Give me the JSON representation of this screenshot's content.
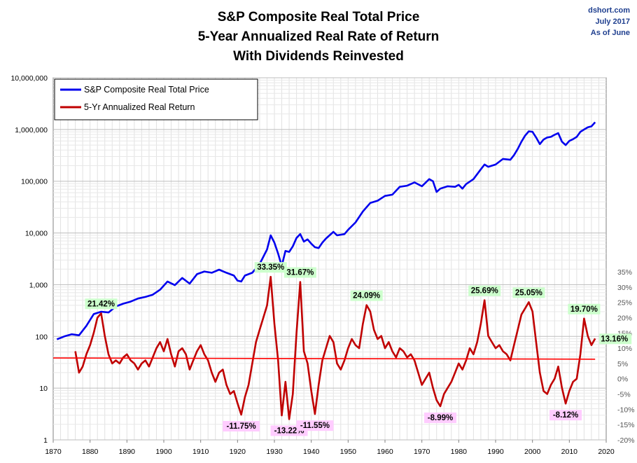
{
  "title_lines": [
    "S&P Composite Real Total Price",
    "5-Year Annualized Real Rate of Return",
    "With Dividends Reinvested"
  ],
  "meta": {
    "source": "dshort.com",
    "date": "July 2017",
    "as_of": "As of June"
  },
  "legend": {
    "price_label": "S&P Composite Real Total Price",
    "return_label": "5-Yr Annualized Real Return"
  },
  "colors": {
    "price": "#0000ee",
    "return": "#c00000",
    "trend": "#ff0000",
    "positive_label_bg": "#ccffcc",
    "negative_label_bg": "#ffccff"
  },
  "chart_data": {
    "type": "line",
    "title": "S&P Composite Real Total Price / 5-Year Annualized Real Rate of Return / With Dividends Reinvested",
    "x_axis": {
      "min": 1870,
      "max": 2020,
      "ticks": [
        "1870",
        "1880",
        "1890",
        "1900",
        "1910",
        "1920",
        "1930",
        "1940",
        "1950",
        "1960",
        "1970",
        "1980",
        "1990",
        "2000",
        "2010",
        "2020"
      ]
    },
    "y_left": {
      "scale": "log",
      "min": 1,
      "max": 10000000,
      "ticks": [
        "1",
        "10",
        "100",
        "1,000",
        "10,000",
        "100,000",
        "1,000,000",
        "10,000,000"
      ]
    },
    "y_right": {
      "min": -20,
      "max": 35,
      "unit": "%",
      "ticks": [
        "-20%",
        "-15%",
        "-10%",
        "-5%",
        "0%",
        "5%",
        "10%",
        "15%",
        "20%",
        "25%",
        "30%",
        "35%"
      ]
    },
    "grid": true,
    "legend_position": "top-left",
    "series": [
      {
        "name": "S&P Composite Real Total Price",
        "axis": "left",
        "points": [
          [
            1871,
            88
          ],
          [
            1873,
            100
          ],
          [
            1875,
            110
          ],
          [
            1877,
            105
          ],
          [
            1879,
            160
          ],
          [
            1881,
            270
          ],
          [
            1883,
            300
          ],
          [
            1885,
            290
          ],
          [
            1887,
            380
          ],
          [
            1889,
            430
          ],
          [
            1891,
            470
          ],
          [
            1893,
            540
          ],
          [
            1895,
            580
          ],
          [
            1897,
            640
          ],
          [
            1899,
            800
          ],
          [
            1901,
            1150
          ],
          [
            1903,
            980
          ],
          [
            1905,
            1350
          ],
          [
            1907,
            1050
          ],
          [
            1909,
            1600
          ],
          [
            1911,
            1800
          ],
          [
            1913,
            1700
          ],
          [
            1915,
            1950
          ],
          [
            1917,
            1700
          ],
          [
            1919,
            1500
          ],
          [
            1920,
            1200
          ],
          [
            1921,
            1150
          ],
          [
            1922,
            1500
          ],
          [
            1924,
            1700
          ],
          [
            1926,
            2500
          ],
          [
            1928,
            4800
          ],
          [
            1929,
            9000
          ],
          [
            1930,
            6500
          ],
          [
            1931,
            4000
          ],
          [
            1932,
            2300
          ],
          [
            1933,
            4500
          ],
          [
            1934,
            4300
          ],
          [
            1935,
            5500
          ],
          [
            1936,
            8000
          ],
          [
            1937,
            9500
          ],
          [
            1938,
            6800
          ],
          [
            1939,
            7500
          ],
          [
            1940,
            6200
          ],
          [
            1941,
            5300
          ],
          [
            1942,
            5100
          ],
          [
            1943,
            6500
          ],
          [
            1944,
            7800
          ],
          [
            1946,
            10500
          ],
          [
            1947,
            9000
          ],
          [
            1949,
            9500
          ],
          [
            1950,
            11500
          ],
          [
            1952,
            16000
          ],
          [
            1954,
            26000
          ],
          [
            1956,
            38000
          ],
          [
            1958,
            42000
          ],
          [
            1960,
            52000
          ],
          [
            1962,
            55000
          ],
          [
            1964,
            78000
          ],
          [
            1966,
            82000
          ],
          [
            1968,
            95000
          ],
          [
            1970,
            80000
          ],
          [
            1972,
            110000
          ],
          [
            1973,
            100000
          ],
          [
            1974,
            62000
          ],
          [
            1975,
            72000
          ],
          [
            1977,
            80000
          ],
          [
            1979,
            78000
          ],
          [
            1980,
            85000
          ],
          [
            1981,
            72000
          ],
          [
            1982,
            88000
          ],
          [
            1984,
            110000
          ],
          [
            1986,
            170000
          ],
          [
            1987,
            210000
          ],
          [
            1988,
            190000
          ],
          [
            1990,
            210000
          ],
          [
            1992,
            270000
          ],
          [
            1994,
            260000
          ],
          [
            1995,
            320000
          ],
          [
            1996,
            420000
          ],
          [
            1997,
            580000
          ],
          [
            1998,
            760000
          ],
          [
            1999,
            920000
          ],
          [
            2000,
            900000
          ],
          [
            2001,
            700000
          ],
          [
            2002,
            520000
          ],
          [
            2003,
            640000
          ],
          [
            2004,
            700000
          ],
          [
            2005,
            720000
          ],
          [
            2006,
            790000
          ],
          [
            2007,
            850000
          ],
          [
            2008,
            580000
          ],
          [
            2009,
            500000
          ],
          [
            2010,
            600000
          ],
          [
            2011,
            650000
          ],
          [
            2012,
            720000
          ],
          [
            2013,
            900000
          ],
          [
            2014,
            1000000
          ],
          [
            2015,
            1100000
          ],
          [
            2016,
            1150000
          ],
          [
            2017,
            1380000
          ]
        ]
      },
      {
        "name": "5-Yr Annualized Real Return",
        "axis": "right",
        "points": [
          [
            1876,
            9
          ],
          [
            1877,
            2
          ],
          [
            1878,
            4
          ],
          [
            1879,
            8
          ],
          [
            1880,
            11
          ],
          [
            1881,
            15
          ],
          [
            1882,
            20
          ],
          [
            1883,
            21.42
          ],
          [
            1884,
            14
          ],
          [
            1885,
            8
          ],
          [
            1886,
            5
          ],
          [
            1887,
            6
          ],
          [
            1888,
            5
          ],
          [
            1889,
            7
          ],
          [
            1890,
            8
          ],
          [
            1891,
            6
          ],
          [
            1892,
            5
          ],
          [
            1893,
            3
          ],
          [
            1894,
            5
          ],
          [
            1895,
            6
          ],
          [
            1896,
            4
          ],
          [
            1897,
            7
          ],
          [
            1898,
            10
          ],
          [
            1899,
            12
          ],
          [
            1900,
            9
          ],
          [
            1901,
            13
          ],
          [
            1902,
            8
          ],
          [
            1903,
            4
          ],
          [
            1904,
            9
          ],
          [
            1905,
            10
          ],
          [
            1906,
            8
          ],
          [
            1907,
            3
          ],
          [
            1908,
            6
          ],
          [
            1909,
            9
          ],
          [
            1910,
            11
          ],
          [
            1911,
            8
          ],
          [
            1912,
            6
          ],
          [
            1913,
            2
          ],
          [
            1914,
            -1
          ],
          [
            1915,
            2
          ],
          [
            1916,
            3
          ],
          [
            1917,
            -2
          ],
          [
            1918,
            -5
          ],
          [
            1919,
            -4
          ],
          [
            1920,
            -8
          ],
          [
            1921,
            -11.75
          ],
          [
            1922,
            -6
          ],
          [
            1923,
            -2
          ],
          [
            1924,
            5
          ],
          [
            1925,
            12
          ],
          [
            1926,
            16
          ],
          [
            1927,
            20
          ],
          [
            1928,
            24
          ],
          [
            1929,
            33.35
          ],
          [
            1930,
            18
          ],
          [
            1931,
            6
          ],
          [
            1932,
            -12
          ],
          [
            1933,
            -1
          ],
          [
            1934,
            -13.22
          ],
          [
            1935,
            -5
          ],
          [
            1936,
            15
          ],
          [
            1937,
            31.67
          ],
          [
            1938,
            9
          ],
          [
            1939,
            5
          ],
          [
            1940,
            -4
          ],
          [
            1941,
            -11.55
          ],
          [
            1942,
            -2
          ],
          [
            1943,
            6
          ],
          [
            1944,
            10
          ],
          [
            1945,
            14
          ],
          [
            1946,
            12
          ],
          [
            1947,
            5
          ],
          [
            1948,
            3
          ],
          [
            1949,
            6
          ],
          [
            1950,
            10
          ],
          [
            1951,
            13
          ],
          [
            1952,
            11
          ],
          [
            1953,
            10
          ],
          [
            1954,
            18
          ],
          [
            1955,
            24.09
          ],
          [
            1956,
            22
          ],
          [
            1957,
            16
          ],
          [
            1958,
            13
          ],
          [
            1959,
            14
          ],
          [
            1960,
            10
          ],
          [
            1961,
            12
          ],
          [
            1962,
            9
          ],
          [
            1963,
            7
          ],
          [
            1964,
            10
          ],
          [
            1965,
            9
          ],
          [
            1966,
            7
          ],
          [
            1967,
            8
          ],
          [
            1968,
            6
          ],
          [
            1969,
            2
          ],
          [
            1970,
            -2
          ],
          [
            1971,
            0
          ],
          [
            1972,
            2
          ],
          [
            1973,
            -3
          ],
          [
            1974,
            -7
          ],
          [
            1975,
            -8.99
          ],
          [
            1976,
            -5
          ],
          [
            1977,
            -3
          ],
          [
            1978,
            -1
          ],
          [
            1979,
            2
          ],
          [
            1980,
            5
          ],
          [
            1981,
            3
          ],
          [
            1982,
            6
          ],
          [
            1983,
            10
          ],
          [
            1984,
            8
          ],
          [
            1985,
            12
          ],
          [
            1986,
            18
          ],
          [
            1987,
            25.69
          ],
          [
            1988,
            14
          ],
          [
            1989,
            12
          ],
          [
            1990,
            10
          ],
          [
            1991,
            11
          ],
          [
            1992,
            9
          ],
          [
            1993,
            8
          ],
          [
            1994,
            6
          ],
          [
            1995,
            11
          ],
          [
            1996,
            16
          ],
          [
            1997,
            21
          ],
          [
            1998,
            23
          ],
          [
            1999,
            25.05
          ],
          [
            2000,
            22
          ],
          [
            2001,
            12
          ],
          [
            2002,
            2
          ],
          [
            2003,
            -4
          ],
          [
            2004,
            -5
          ],
          [
            2005,
            -2
          ],
          [
            2006,
            0
          ],
          [
            2007,
            4
          ],
          [
            2008,
            -3
          ],
          [
            2009,
            -8.12
          ],
          [
            2010,
            -4
          ],
          [
            2011,
            -1
          ],
          [
            2012,
            0
          ],
          [
            2013,
            8
          ],
          [
            2014,
            19.7
          ],
          [
            2015,
            14
          ],
          [
            2016,
            11
          ],
          [
            2017,
            13.16
          ]
        ]
      },
      {
        "name": "",
        "axis": "right",
        "style": "trend",
        "points": [
          [
            1870,
            6.8
          ],
          [
            2017,
            6.4
          ]
        ]
      }
    ],
    "annotations": [
      {
        "x": 1883,
        "y": 21.42,
        "text": "21.42%",
        "kind": "peak"
      },
      {
        "x": 1929,
        "y": 33.35,
        "text": "33.35%",
        "kind": "peak"
      },
      {
        "x": 1937,
        "y": 31.67,
        "text": "31.67%",
        "kind": "peak"
      },
      {
        "x": 1955,
        "y": 24.09,
        "text": "24.09%",
        "kind": "peak"
      },
      {
        "x": 1987,
        "y": 25.69,
        "text": "25.69%",
        "kind": "peak"
      },
      {
        "x": 1999,
        "y": 25.05,
        "text": "25.05%",
        "kind": "peak"
      },
      {
        "x": 2014,
        "y": 19.7,
        "text": "19.70%",
        "kind": "peak"
      },
      {
        "x": 2017,
        "y": 13.16,
        "text": "13.16%",
        "kind": "current"
      },
      {
        "x": 1921,
        "y": -11.75,
        "text": "-11.75%",
        "kind": "trough"
      },
      {
        "x": 1934,
        "y": -13.22,
        "text": "-13.22%",
        "kind": "trough"
      },
      {
        "x": 1941,
        "y": -11.55,
        "text": "-11.55%",
        "kind": "trough"
      },
      {
        "x": 1975,
        "y": -8.99,
        "text": "-8.99%",
        "kind": "trough"
      },
      {
        "x": 2009,
        "y": -8.12,
        "text": "-8.12%",
        "kind": "trough"
      }
    ]
  }
}
